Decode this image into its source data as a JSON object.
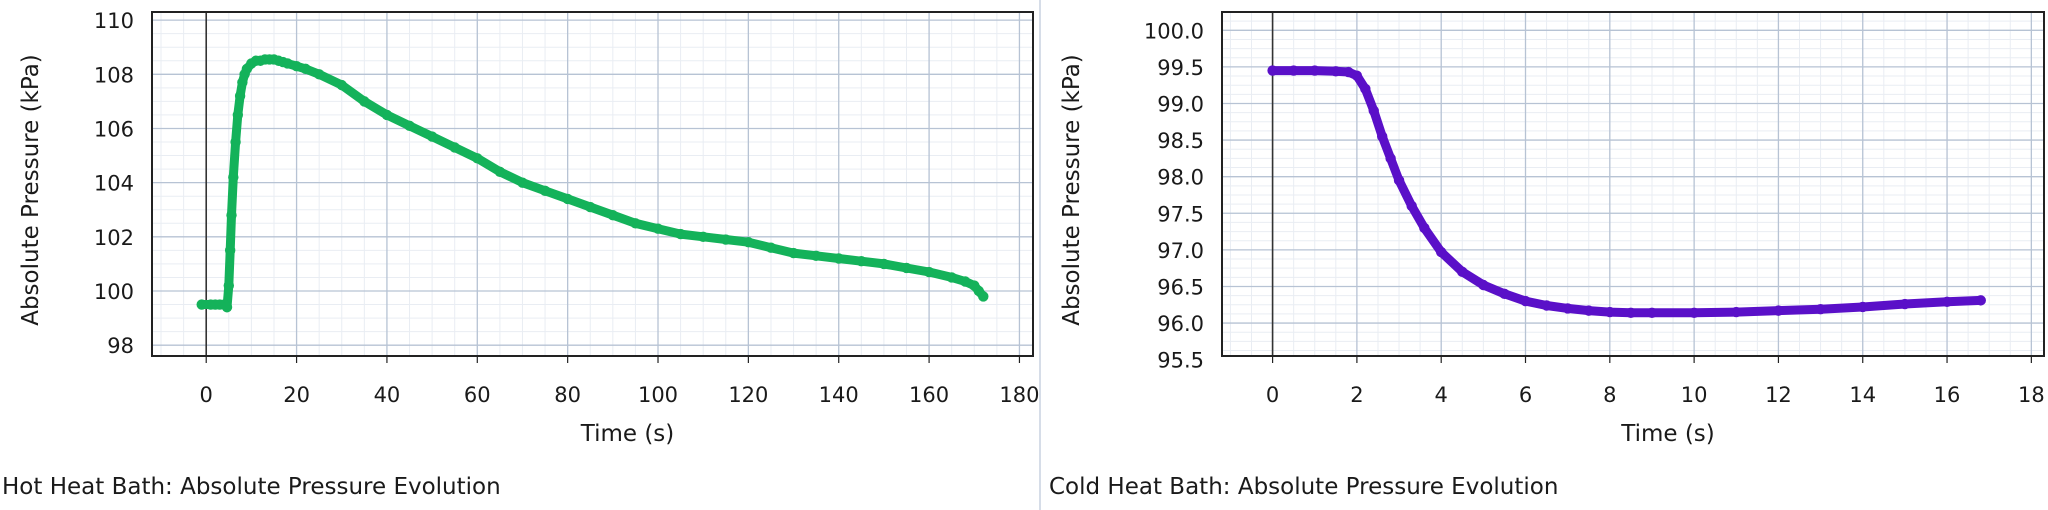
{
  "charts": [
    {
      "caption": "Hot Heat Bath: Absolute Pressure Evolution",
      "color": "#14b25a",
      "chart_data": {
        "type": "scatter",
        "xlabel": "Time (s)",
        "ylabel": "Absolute Pressure (kPa)",
        "xlim": [
          -12,
          183
        ],
        "ylim": [
          97.6,
          110.3
        ],
        "xticks": [
          0,
          20,
          40,
          60,
          80,
          100,
          120,
          140,
          160,
          180
        ],
        "yticks": [
          98,
          100,
          102,
          104,
          106,
          108,
          110
        ],
        "grid": true,
        "series": [
          {
            "x": [
              -1,
              1,
              2,
              3,
              4,
              4.6,
              5,
              5.3,
              5.6,
              6,
              6.5,
              7,
              7.5,
              8,
              8.5,
              9,
              10,
              11,
              12,
              13,
              14,
              15,
              16,
              17,
              18,
              20,
              22,
              25,
              30,
              35,
              40,
              45,
              50,
              55,
              60,
              65,
              70,
              75,
              80,
              85,
              90,
              95,
              100,
              105,
              110,
              115,
              120,
              125,
              130,
              135,
              140,
              145,
              150,
              155,
              160,
              165,
              168,
              170,
              171,
              172
            ],
            "y": [
              99.5,
              99.5,
              99.5,
              99.5,
              99.5,
              99.4,
              100.2,
              101.5,
              102.8,
              104.2,
              105.5,
              106.5,
              107.2,
              107.7,
              108.0,
              108.2,
              108.4,
              108.5,
              108.5,
              108.55,
              108.55,
              108.55,
              108.5,
              108.45,
              108.4,
              108.3,
              108.2,
              108.0,
              107.6,
              107.0,
              106.5,
              106.1,
              105.7,
              105.3,
              104.9,
              104.4,
              104.0,
              103.7,
              103.4,
              103.1,
              102.8,
              102.5,
              102.3,
              102.1,
              102.0,
              101.9,
              101.8,
              101.6,
              101.4,
              101.3,
              101.2,
              101.1,
              101.0,
              100.85,
              100.7,
              100.5,
              100.35,
              100.2,
              100.0,
              99.8
            ]
          }
        ]
      }
    },
    {
      "caption": "Cold Heat Bath: Absolute Pressure Evolution",
      "color": "#5a10c8",
      "chart_data": {
        "type": "scatter",
        "xlabel": "Time (s)",
        "ylabel": "Absolute Pressure (kPa)",
        "xlim": [
          -1.2,
          18.3
        ],
        "ylim": [
          95.55,
          100.25
        ],
        "xticks": [
          0,
          2,
          4,
          6,
          8,
          10,
          12,
          14,
          16,
          18
        ],
        "yticks": [
          95.5,
          96.0,
          96.5,
          97.0,
          97.5,
          98.0,
          98.5,
          99.0,
          99.5,
          100.0
        ],
        "grid": true,
        "series": [
          {
            "x": [
              0,
              0.5,
              1,
              1.5,
              1.8,
              2.0,
              2.2,
              2.4,
              2.6,
              2.8,
              3.0,
              3.3,
              3.6,
              4.0,
              4.5,
              5.0,
              5.5,
              6.0,
              6.5,
              7.0,
              7.5,
              8.0,
              8.5,
              9.0,
              10.0,
              11.0,
              12.0,
              13.0,
              14.0,
              15.0,
              16.0,
              16.8
            ],
            "y": [
              99.45,
              99.45,
              99.45,
              99.44,
              99.43,
              99.38,
              99.2,
              98.9,
              98.55,
              98.25,
              97.95,
              97.6,
              97.3,
              96.97,
              96.7,
              96.52,
              96.4,
              96.3,
              96.24,
              96.2,
              96.17,
              96.15,
              96.14,
              96.14,
              96.14,
              96.15,
              96.17,
              96.19,
              96.22,
              96.26,
              96.29,
              96.31
            ]
          }
        ]
      }
    }
  ]
}
